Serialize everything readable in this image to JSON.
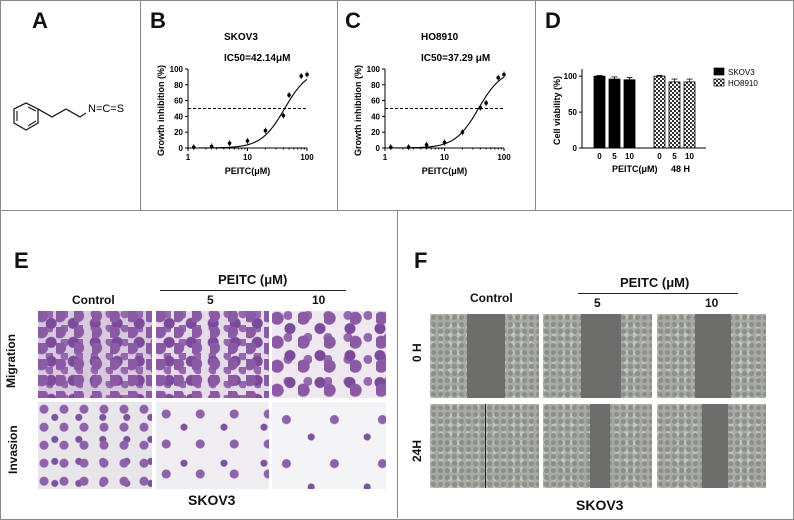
{
  "panels": {
    "A": {
      "label": "A",
      "molecule": "N=C=S"
    },
    "B": {
      "label": "B",
      "chart_data": {
        "type": "scatter",
        "title": "SKOV3",
        "annotation": "IC50=42.14μM",
        "xlabel": "PEITC(μM)",
        "ylabel": "Growth inhibition (%)",
        "xscale": "log",
        "xlim": [
          1,
          100
        ],
        "ylim": [
          0,
          100
        ],
        "xticks": [
          "1",
          "10",
          "100"
        ],
        "yticks": [
          "0",
          "20",
          "40",
          "60",
          "80",
          "100"
        ],
        "reference_line_y": 50,
        "x": [
          1.25,
          2.5,
          5,
          10,
          20,
          40,
          50,
          80,
          100
        ],
        "y": [
          1,
          2,
          6,
          9,
          22,
          41,
          67,
          91,
          93
        ],
        "fit_ic50": 42.14
      }
    },
    "C": {
      "label": "C",
      "chart_data": {
        "type": "scatter",
        "title": "HO8910",
        "annotation": "IC50=37.29 μM",
        "xlabel": "PEITC(μM)",
        "ylabel": "Growth inhibition (%)",
        "xscale": "log",
        "xlim": [
          1,
          100
        ],
        "ylim": [
          0,
          100
        ],
        "xticks": [
          "1",
          "10",
          "100"
        ],
        "yticks": [
          "0",
          "20",
          "40",
          "60",
          "80",
          "100"
        ],
        "reference_line_y": 50,
        "x": [
          1.25,
          2.5,
          5,
          10,
          20,
          40,
          50,
          80,
          100
        ],
        "y": [
          1,
          1,
          4,
          7,
          20,
          51,
          57,
          89,
          93
        ],
        "fit_ic50": 37.29
      }
    },
    "D": {
      "label": "D",
      "chart_data": {
        "type": "bar",
        "ylabel": "Cell viability (%)",
        "yticks": [
          "0",
          "50",
          "100"
        ],
        "ylim": [
          0,
          110
        ],
        "categories": [
          "0",
          "5",
          "10"
        ],
        "series": [
          {
            "name": "SKOV3",
            "values": [
              100,
              96,
              95
            ],
            "errors": [
              1,
              3,
              3
            ],
            "color": "#000000"
          },
          {
            "name": "HO8910",
            "values": [
              100,
              92,
              92
            ],
            "errors": [
              1,
              4,
              4
            ],
            "color": "checker"
          }
        ],
        "xlabel": "PEITC(μM)",
        "time_label": "48 H",
        "legend_position": "top-right"
      }
    },
    "E": {
      "label": "E",
      "treatment": "PEITC (μM)",
      "control": "Control",
      "doses": [
        "5",
        "10"
      ],
      "rows": [
        "Migration",
        "Invasion"
      ],
      "cell_line": "SKOV3"
    },
    "F": {
      "label": "F",
      "treatment": "PEITC (μM)",
      "control": "Control",
      "doses": [
        "5",
        "10"
      ],
      "rows": [
        "0 H",
        "24H"
      ],
      "cell_line": "SKOV3"
    }
  }
}
